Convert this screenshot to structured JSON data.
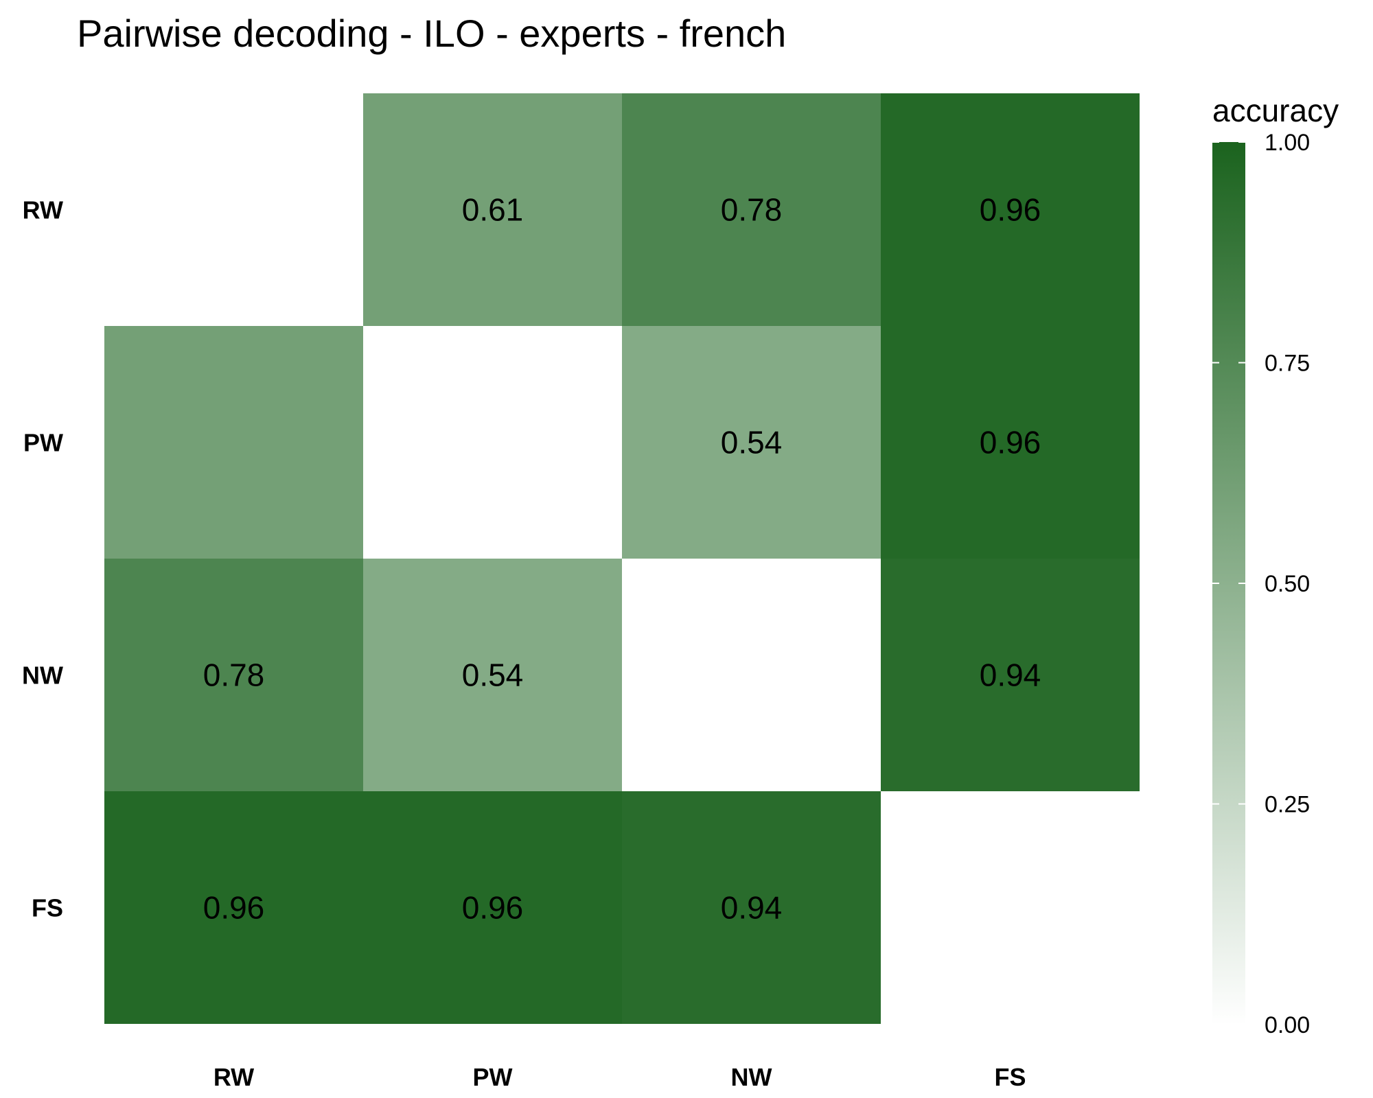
{
  "chart_data": {
    "type": "heatmap",
    "title": "Pairwise decoding - ILO - experts - french",
    "x_categories": [
      "RW",
      "PW",
      "NW",
      "FS"
    ],
    "y_categories": [
      "RW",
      "PW",
      "NW",
      "FS"
    ],
    "matrix": [
      [
        null,
        0.61,
        0.78,
        0.96
      ],
      [
        0.61,
        null,
        0.54,
        0.96
      ],
      [
        0.78,
        0.54,
        null,
        0.94
      ],
      [
        0.96,
        0.96,
        0.94,
        null
      ]
    ],
    "cell_labels": [
      [
        null,
        "0.61",
        "0.78",
        "0.96"
      ],
      [
        null,
        null,
        "0.54",
        "0.96"
      ],
      [
        "0.78",
        "0.54",
        null,
        "0.94"
      ],
      [
        "0.96",
        "0.96",
        "0.94",
        null
      ]
    ],
    "legend": {
      "title": "accuracy",
      "ticks": [
        "1.00",
        "0.75",
        "0.50",
        "0.25",
        "0.00"
      ],
      "range": [
        0,
        1
      ],
      "color_low": "#ffffff",
      "color_high": "#1b631e"
    },
    "grid": false
  }
}
